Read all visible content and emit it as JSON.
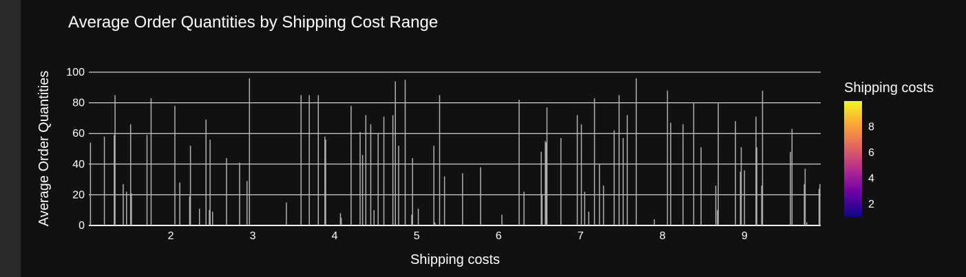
{
  "chart_data": {
    "type": "bar",
    "title": "Average Order Quantities by Shipping Cost Range",
    "xlabel": "Shipping costs",
    "ylabel": "Average Order Quantities",
    "xlim": [
      1.0,
      9.93
    ],
    "ylim": [
      0,
      100
    ],
    "x_ticks": [
      2,
      3,
      4,
      5,
      6,
      7,
      8,
      9
    ],
    "y_ticks": [
      0,
      20,
      40,
      60,
      80,
      100
    ],
    "grid": true,
    "bar_color": "#b0b0b0",
    "colorbar": {
      "title": "Shipping costs",
      "ticks": [
        2,
        4,
        6,
        8
      ],
      "range": [
        1.0,
        9.93
      ],
      "colors": [
        "#0d0887",
        "#6a00a8",
        "#b12a90",
        "#e16462",
        "#fca636",
        "#f0f921"
      ]
    },
    "x": [
      1.02,
      1.19,
      1.31,
      1.32,
      1.42,
      1.46,
      1.51,
      1.52,
      1.71,
      1.76,
      2.05,
      2.11,
      2.23,
      2.24,
      2.35,
      2.43,
      2.47,
      2.48,
      2.51,
      2.68,
      2.84,
      2.93,
      2.96,
      3.41,
      3.59,
      3.69,
      3.8,
      3.88,
      3.89,
      4.07,
      4.08,
      4.2,
      4.31,
      4.34,
      4.38,
      4.44,
      4.48,
      4.53,
      4.6,
      4.71,
      4.74,
      4.78,
      4.86,
      4.94,
      4.95,
      5.02,
      5.21,
      5.22,
      5.23,
      5.28,
      5.34,
      5.56,
      5.78,
      6.04,
      6.25,
      6.31,
      6.52,
      6.53,
      6.57,
      6.58,
      6.59,
      6.76,
      6.96,
      7.01,
      7.05,
      7.1,
      7.17,
      7.23,
      7.28,
      7.41,
      7.47,
      7.52,
      7.57,
      7.68,
      7.9,
      8.06,
      8.1,
      8.25,
      8.38,
      8.47,
      8.65,
      8.67,
      8.68,
      8.89,
      8.95,
      8.96,
      9.0,
      9.14,
      9.15,
      9.21,
      9.22,
      9.56,
      9.58,
      9.73,
      9.74,
      9.76,
      9.91,
      9.92
    ],
    "values": [
      54,
      58,
      59,
      85,
      27,
      22,
      66,
      21,
      59,
      83,
      78,
      28,
      19,
      52,
      11,
      69,
      10,
      56,
      9,
      44,
      41,
      29,
      96,
      15,
      85,
      85,
      85,
      58,
      56,
      8,
      5,
      78,
      61,
      46,
      72,
      66,
      10,
      60,
      71,
      72,
      94,
      52,
      95,
      7,
      44,
      11,
      52,
      2,
      1,
      85,
      32,
      34,
      38,
      7,
      82,
      22,
      48,
      20,
      55,
      54,
      77,
      57,
      72,
      66,
      22,
      9,
      83,
      40,
      26,
      62,
      85,
      57,
      72,
      96,
      4,
      88,
      67,
      66,
      80,
      51,
      26,
      10,
      80,
      68,
      35,
      51,
      36,
      71,
      51,
      26,
      88,
      48,
      63,
      27,
      37,
      2,
      24,
      27
    ]
  }
}
